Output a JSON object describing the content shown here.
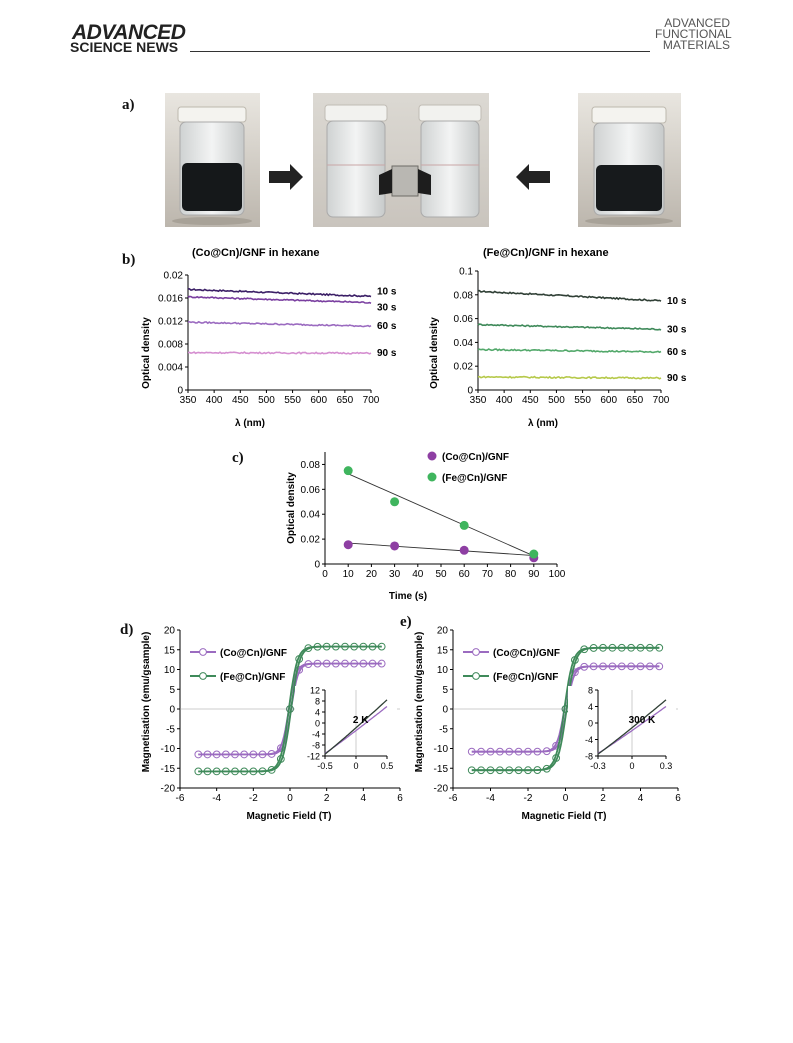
{
  "header": {
    "journal_left_line1": "ADVANCED",
    "journal_left_line2": "SCIENCE NEWS",
    "journal_right_line1": "ADVANCED",
    "journal_right_line2": "FUNCTIONAL",
    "journal_right_line3": "MATERIALS"
  },
  "panels": {
    "a": "a)",
    "b": "b)",
    "c": "c)",
    "d": "d)",
    "e": "e)"
  },
  "colors": {
    "co_dark": "#3b1f66",
    "co_mid": "#7a3fa0",
    "co_light": "#9b6bc0",
    "co_pink": "#d58fd0",
    "fe_dark": "#2f3f35",
    "fe_mid": "#3f8a5a",
    "fe_green": "#52a86a",
    "fe_yellow": "#b6c94a",
    "co_marker": "#8e3fa3",
    "fe_marker": "#3fb55e"
  },
  "chart_data": [
    {
      "id": "b-left",
      "type": "line",
      "title": "(Co@Cn)/GNF in hexane",
      "xlabel": "λ (nm)",
      "ylabel": "Optical density",
      "xlim": [
        350,
        700
      ],
      "ylim": [
        0,
        0.02
      ],
      "xticks": [
        350,
        400,
        450,
        500,
        550,
        600,
        650,
        700
      ],
      "yticks": [
        0,
        0.004,
        0.008,
        0.012,
        0.016,
        0.02
      ],
      "series": [
        {
          "name": "10 s",
          "x": [
            350,
            700
          ],
          "values": [
            0.0175,
            0.0163
          ]
        },
        {
          "name": "30 s",
          "x": [
            350,
            700
          ],
          "values": [
            0.0162,
            0.0152
          ]
        },
        {
          "name": "60 s",
          "x": [
            350,
            700
          ],
          "values": [
            0.0118,
            0.0111
          ]
        },
        {
          "name": "90 s",
          "x": [
            350,
            700
          ],
          "values": [
            0.0065,
            0.0064
          ]
        }
      ]
    },
    {
      "id": "b-right",
      "type": "line",
      "title": "(Fe@Cn)/GNF in hexane",
      "xlabel": "λ (nm)",
      "ylabel": "Optical density",
      "xlim": [
        350,
        700
      ],
      "ylim": [
        0,
        0.1
      ],
      "xticks": [
        350,
        400,
        450,
        500,
        550,
        600,
        650,
        700
      ],
      "yticks": [
        0,
        0.02,
        0.04,
        0.06,
        0.08,
        0.1
      ],
      "series": [
        {
          "name": "10 s",
          "x": [
            350,
            700
          ],
          "values": [
            0.083,
            0.075
          ]
        },
        {
          "name": "30 s",
          "x": [
            350,
            700
          ],
          "values": [
            0.055,
            0.051
          ]
        },
        {
          "name": "60 s",
          "x": [
            350,
            700
          ],
          "values": [
            0.034,
            0.032
          ]
        },
        {
          "name": "90 s",
          "x": [
            350,
            700
          ],
          "values": [
            0.011,
            0.01
          ]
        }
      ]
    },
    {
      "id": "c",
      "type": "scatter",
      "xlabel": "Time (s)",
      "ylabel": "Optical density",
      "xlim": [
        0,
        100
      ],
      "ylim": [
        0,
        0.09
      ],
      "xticks": [
        0,
        10,
        20,
        30,
        40,
        50,
        60,
        70,
        80,
        90,
        100
      ],
      "yticks": [
        0,
        0.02,
        0.04,
        0.06,
        0.08
      ],
      "series": [
        {
          "name": "(Co@Cn)/GNF",
          "x": [
            10,
            30,
            60,
            90
          ],
          "values": [
            0.0155,
            0.0145,
            0.011,
            0.005
          ],
          "fit": [
            [
              10,
              0.0168
            ],
            [
              90,
              0.0068
            ]
          ]
        },
        {
          "name": "(Fe@Cn)/GNF",
          "x": [
            10,
            30,
            60,
            90
          ],
          "values": [
            0.075,
            0.05,
            0.031,
            0.008
          ],
          "fit": [
            [
              10,
              0.0725
            ],
            [
              90,
              0.0065
            ]
          ]
        }
      ]
    },
    {
      "id": "d",
      "type": "line",
      "xlabel": "Magnetic Field (T)",
      "ylabel": "Magnetisation (emu/gsample)",
      "xlim": [
        -6,
        6
      ],
      "ylim": [
        -20,
        20
      ],
      "xticks": [
        -6,
        -4,
        -2,
        0,
        2,
        4,
        6
      ],
      "yticks": [
        -20,
        -15,
        -10,
        -5,
        0,
        5,
        10,
        15,
        20
      ],
      "series": [
        {
          "name": "(Co@Cn)/GNF",
          "saturation": 11.5
        },
        {
          "name": "(Fe@Cn)/GNF",
          "saturation": 15.8
        }
      ],
      "inset": {
        "label": "2 K",
        "xlim": [
          -0.5,
          0.5
        ],
        "ylim": [
          -12,
          12
        ],
        "xticks": [
          -0.5,
          0,
          0.5
        ],
        "yticks": [
          -12,
          -8,
          -4,
          0,
          4,
          8,
          12
        ]
      }
    },
    {
      "id": "e",
      "type": "line",
      "xlabel": "Magnetic Field (T)",
      "ylabel": "Magnetisation (emu/gsample)",
      "xlim": [
        -6,
        6
      ],
      "ylim": [
        -20,
        20
      ],
      "xticks": [
        -6,
        -4,
        -2,
        0,
        2,
        4,
        6
      ],
      "yticks": [
        -20,
        -15,
        -10,
        -5,
        0,
        5,
        10,
        15,
        20
      ],
      "series": [
        {
          "name": "(Co@Cn)/GNF",
          "saturation": 10.8
        },
        {
          "name": "(Fe@Cn)/GNF",
          "saturation": 15.5
        }
      ],
      "inset": {
        "label": "300 K",
        "xlim": [
          -0.3,
          0.3
        ],
        "ylim": [
          -8,
          8
        ],
        "xticks": [
          -0.3,
          0,
          0.3
        ],
        "yticks": [
          -8,
          -4,
          0,
          4,
          8
        ]
      }
    }
  ]
}
